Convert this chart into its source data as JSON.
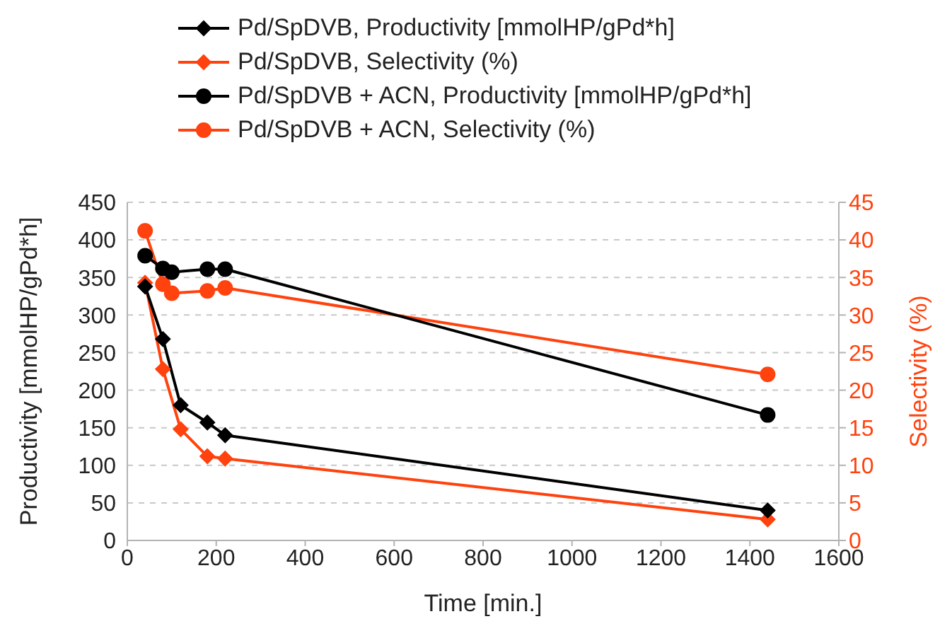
{
  "chart_data": {
    "type": "line",
    "xlabel": "Time [min.]",
    "ylabel": "Productivity [mmolHP/gPd*h]",
    "y2label": "Selectivity (%)",
    "xlim": [
      0,
      1600
    ],
    "xticks": [
      0,
      200,
      400,
      600,
      800,
      1000,
      1200,
      1400,
      1600
    ],
    "ylim": [
      0,
      450
    ],
    "yticks": [
      0,
      50,
      100,
      150,
      200,
      250,
      300,
      350,
      400,
      450
    ],
    "y2lim": [
      0,
      45
    ],
    "y2ticks": [
      0,
      5,
      10,
      15,
      20,
      25,
      30,
      35,
      40,
      45
    ],
    "grid": "y",
    "legend": "top",
    "line_style": "solid",
    "series": [
      {
        "name": "Pd/SpDVB, Productivity [mmolHP/gPd*h]",
        "color": "#000000",
        "marker": "diamond",
        "x": [
          40,
          80,
          120,
          180,
          220,
          1440
        ],
        "values": [
          338,
          268,
          180,
          157,
          140,
          40
        ]
      },
      {
        "name": "Pd/SpDVB, Selectivity (%)",
        "color": "#ff420e",
        "marker": "diamond",
        "axis": "y2",
        "x": [
          40,
          80,
          120,
          180,
          220,
          1440
        ],
        "values": [
          34.3,
          22.8,
          14.8,
          11.2,
          10.9,
          2.8
        ]
      },
      {
        "name": "Pd/SpDVB + ACN, Productivity [mmolHP/gPd*h]",
        "color": "#000000",
        "marker": "circle",
        "x": [
          40,
          80,
          100,
          180,
          220,
          1440
        ],
        "values": [
          379,
          362,
          357,
          361,
          361,
          167
        ]
      },
      {
        "name": "Pd/SpDVB + ACN, Selectivity (%)",
        "color": "#ff420e",
        "marker": "circle",
        "axis": "y2",
        "x": [
          40,
          80,
          100,
          180,
          220,
          1440
        ],
        "values": [
          41.2,
          34.1,
          32.9,
          33.2,
          33.6,
          22.1
        ]
      }
    ]
  }
}
